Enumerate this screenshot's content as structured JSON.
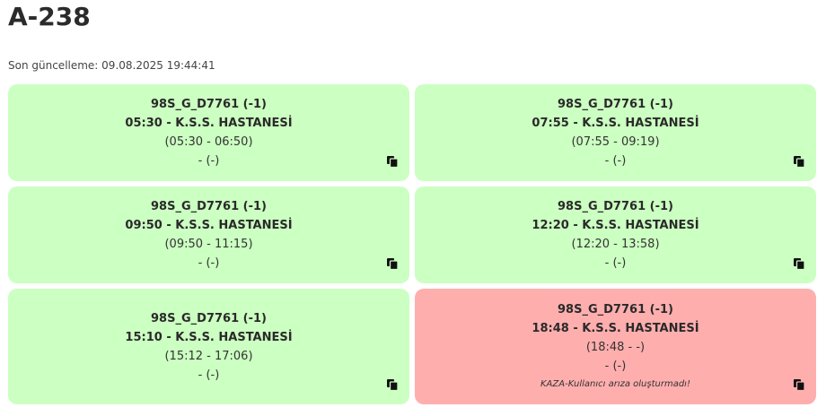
{
  "page": {
    "title": "A-238",
    "updated": "Son güncelleme: 09.08.2025 19:44:41"
  },
  "cards": [
    {
      "status": "green",
      "route": "98S_G_D7761 (-1)",
      "departure": "05:30 - K.S.S. HASTANESİ",
      "range": "(05:30 - 06:50)",
      "extra": "- (-)",
      "note": ""
    },
    {
      "status": "green",
      "route": "98S_G_D7761 (-1)",
      "departure": "07:55 - K.S.S. HASTANESİ",
      "range": "(07:55 - 09:19)",
      "extra": "- (-)",
      "note": ""
    },
    {
      "status": "green",
      "route": "98S_G_D7761 (-1)",
      "departure": "09:50 - K.S.S. HASTANESİ",
      "range": "(09:50 - 11:15)",
      "extra": "- (-)",
      "note": ""
    },
    {
      "status": "green",
      "route": "98S_G_D7761 (-1)",
      "departure": "12:20 - K.S.S. HASTANESİ",
      "range": "(12:20 - 13:58)",
      "extra": "- (-)",
      "note": ""
    },
    {
      "status": "green",
      "route": "98S_G_D7761 (-1)",
      "departure": "15:10 - K.S.S. HASTANESİ",
      "range": "(15:12 - 17:06)",
      "extra": "- (-)",
      "note": ""
    },
    {
      "status": "red",
      "route": "98S_G_D7761 (-1)",
      "departure": "18:48 - K.S.S. HASTANESİ",
      "range": "(18:48 - -)",
      "extra": "- (-)",
      "note": "KAZA-Kullanıcı arıza oluşturmadı!"
    }
  ],
  "colors": {
    "ok": "#ccffc2",
    "alert": "#ffaeae"
  },
  "icons": {
    "copy": "copy-icon"
  }
}
